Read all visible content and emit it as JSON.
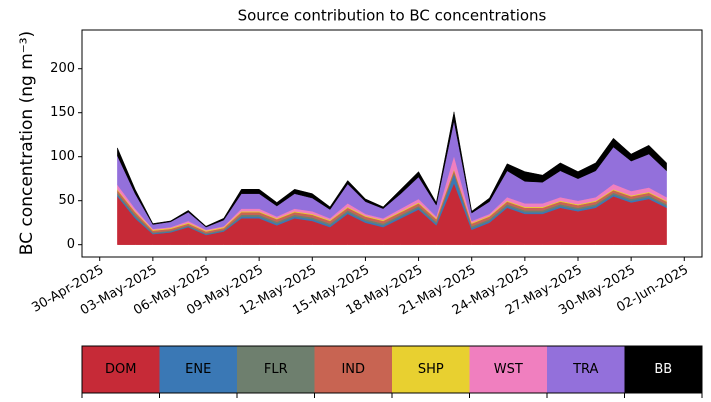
{
  "chart_data": {
    "type": "stacked_area",
    "title": "Source contribution to BC concentrations",
    "y_label": "BC concentration (ng m⁻³)",
    "x": [
      "2025-05-01",
      "2025-05-02",
      "2025-05-03",
      "2025-05-04",
      "2025-05-05",
      "2025-05-06",
      "2025-05-07",
      "2025-05-08",
      "2025-05-09",
      "2025-05-10",
      "2025-05-11",
      "2025-05-12",
      "2025-05-13",
      "2025-05-14",
      "2025-05-15",
      "2025-05-16",
      "2025-05-17",
      "2025-05-18",
      "2025-05-19",
      "2025-05-20",
      "2025-05-21",
      "2025-05-22",
      "2025-05-23",
      "2025-05-24",
      "2025-05-25",
      "2025-05-26",
      "2025-05-27",
      "2025-05-28",
      "2025-05-29",
      "2025-05-30",
      "2025-05-31",
      "2025-06-01"
    ],
    "xlim": [
      "2025-04-29",
      "2025-06-03"
    ],
    "xticks": [
      {
        "value": "2025-04-30",
        "label": "30-Apr-2025"
      },
      {
        "value": "2025-05-03",
        "label": "03-May-2025"
      },
      {
        "value": "2025-05-06",
        "label": "06-May-2025"
      },
      {
        "value": "2025-05-09",
        "label": "09-May-2025"
      },
      {
        "value": "2025-05-12",
        "label": "12-May-2025"
      },
      {
        "value": "2025-05-15",
        "label": "15-May-2025"
      },
      {
        "value": "2025-05-18",
        "label": "18-May-2025"
      },
      {
        "value": "2025-05-21",
        "label": "21-May-2025"
      },
      {
        "value": "2025-05-24",
        "label": "24-May-2025"
      },
      {
        "value": "2025-05-27",
        "label": "27-May-2025"
      },
      {
        "value": "2025-05-30",
        "label": "30-May-2025"
      },
      {
        "value": "2025-06-02",
        "label": "02-Jun-2025"
      }
    ],
    "ylim": [
      -14,
      244
    ],
    "yticks": [
      0,
      50,
      100,
      150,
      200
    ],
    "series": [
      {
        "name": "DOM",
        "color": "#c62a37",
        "values": [
          55,
          30,
          12,
          14,
          20,
          11,
          15,
          30,
          30,
          22,
          30,
          27,
          20,
          35,
          25,
          20,
          30,
          40,
          22,
          70,
          17,
          25,
          42,
          35,
          35,
          42,
          38,
          42,
          55,
          48,
          52,
          42
        ]
      },
      {
        "name": "ENE",
        "color": "#3a78b5",
        "values": [
          2,
          2,
          1,
          1,
          1,
          1,
          1,
          2,
          2,
          2,
          2,
          2,
          2,
          2,
          2,
          2,
          2,
          2,
          2,
          10,
          2,
          2,
          2,
          2,
          2,
          2,
          2,
          2,
          2,
          2,
          2,
          2
        ]
      },
      {
        "name": "FLR",
        "color": "#6e7f6e",
        "values": [
          2,
          2,
          1,
          1,
          1,
          1,
          1,
          2,
          2,
          2,
          2,
          2,
          2,
          2,
          2,
          2,
          2,
          2,
          2,
          2,
          2,
          2,
          2,
          2,
          2,
          2,
          2,
          2,
          2,
          2,
          2,
          2
        ]
      },
      {
        "name": "IND",
        "color": "#c86452",
        "values": [
          3,
          3,
          2,
          2,
          2,
          2,
          2,
          3,
          3,
          3,
          3,
          3,
          3,
          3,
          3,
          3,
          3,
          3,
          3,
          3,
          3,
          3,
          3,
          3,
          3,
          3,
          3,
          3,
          3,
          3,
          3,
          3
        ]
      },
      {
        "name": "SHP",
        "color": "#e8d030",
        "values": [
          1,
          1,
          1,
          1,
          1,
          1,
          1,
          1,
          1,
          1,
          1,
          1,
          1,
          1,
          1,
          1,
          1,
          1,
          1,
          1,
          1,
          1,
          1,
          1,
          1,
          1,
          1,
          1,
          1,
          1,
          1,
          1
        ]
      },
      {
        "name": "WST",
        "color": "#f07fbf",
        "values": [
          5,
          3,
          1,
          1,
          2,
          1,
          1,
          3,
          3,
          2,
          3,
          3,
          2,
          4,
          2,
          2,
          3,
          4,
          2,
          15,
          2,
          2,
          4,
          4,
          4,
          4,
          4,
          4,
          6,
          5,
          5,
          4
        ]
      },
      {
        "name": "TRA",
        "color": "#9370db",
        "values": [
          33,
          17,
          5,
          6,
          10,
          3,
          7,
          17,
          17,
          12,
          17,
          15,
          10,
          22,
          14,
          11,
          17,
          25,
          13,
          40,
          9,
          14,
          30,
          25,
          24,
          30,
          25,
          30,
          42,
          34,
          38,
          30
        ]
      },
      {
        "name": "BB",
        "color": "#000000",
        "values": [
          9,
          5,
          1,
          1,
          2,
          1,
          2,
          5,
          5,
          4,
          5,
          5,
          3,
          4,
          3,
          2,
          5,
          6,
          3,
          10,
          2,
          4,
          8,
          11,
          8,
          9,
          8,
          9,
          10,
          8,
          10,
          9
        ]
      }
    ]
  }
}
